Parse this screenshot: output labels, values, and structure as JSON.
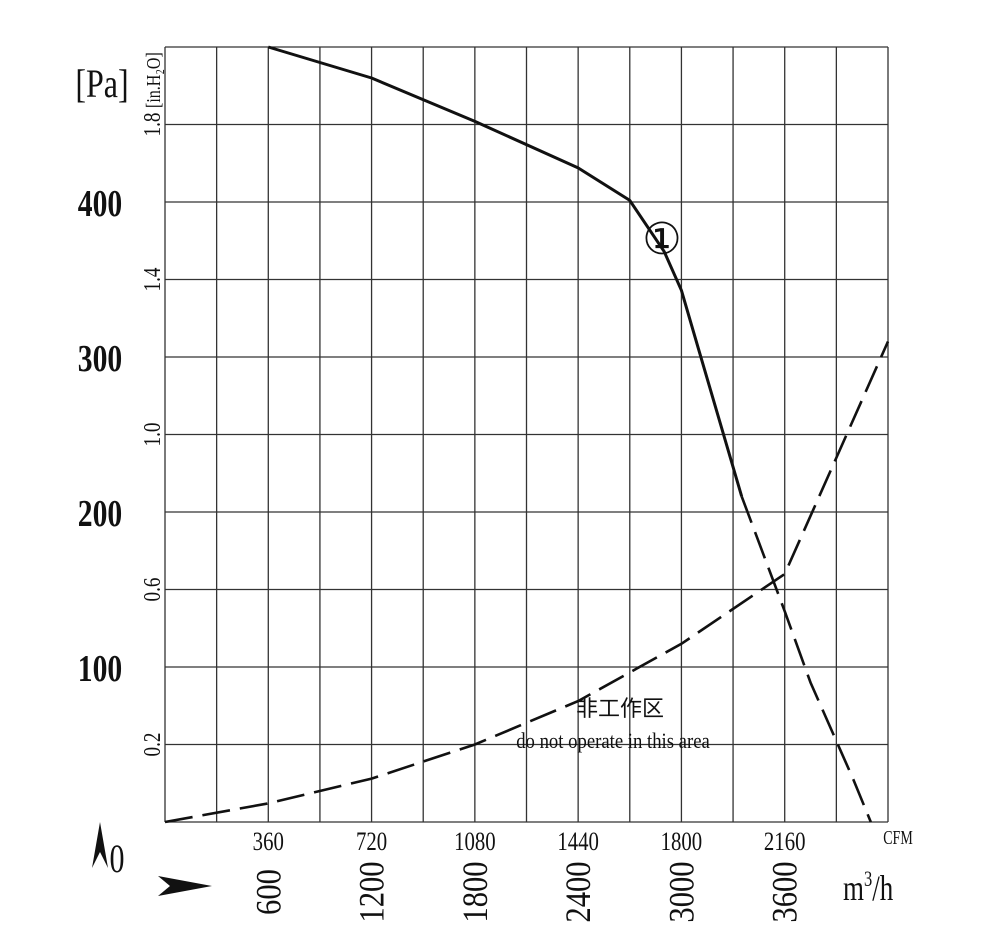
{
  "chart_data": {
    "type": "line",
    "y_unit_left": "[Pa]",
    "y_unit_right": "[in.H₂O]",
    "x_unit_cfm": "CFM",
    "x_unit_m3h": "m³/h",
    "x_unit_m3h_base": "m",
    "x_unit_m3h_exp": "3",
    "x_unit_m3h_tail": "/h",
    "origin_label": "0",
    "xlim_m3h": [
      0,
      4200
    ],
    "ylim_pa": [
      0,
      500
    ],
    "pa_ticks": [
      "100",
      "200",
      "300",
      "400"
    ],
    "pa_tick_values": [
      100,
      200,
      300,
      400
    ],
    "inh2o_ticks": [
      "0.2",
      "0.6",
      "1.0",
      "1.4",
      "1.8"
    ],
    "inh2o_tick_values": [
      0.2,
      0.6,
      1.0,
      1.4,
      1.8
    ],
    "cfm_ticks": [
      "360",
      "720",
      "1080",
      "1440",
      "1800",
      "2160"
    ],
    "cfm_tick_values": [
      360,
      720,
      1080,
      1440,
      1800,
      2160
    ],
    "m3h_ticks": [
      "600",
      "1200",
      "1800",
      "2400",
      "3000",
      "3600"
    ],
    "m3h_tick_values": [
      600,
      1200,
      1800,
      2400,
      3000,
      3600
    ],
    "grid": true,
    "series": [
      {
        "name": "①",
        "marker_label": "①",
        "style": "solid",
        "color": "#111111",
        "points": [
          [
            600,
            500
          ],
          [
            1200,
            480
          ],
          [
            1800,
            452
          ],
          [
            2400,
            422
          ],
          [
            2700,
            401
          ],
          [
            2900,
            368
          ],
          [
            3000,
            343
          ],
          [
            3100,
            305
          ],
          [
            3350,
            210
          ],
          [
            3600,
            136
          ],
          [
            3750,
            90
          ],
          [
            4000,
            27
          ],
          [
            4100,
            0
          ]
        ]
      },
      {
        "name": "",
        "style": "dashed",
        "color": "#111111",
        "points": [
          [
            0,
            0
          ],
          [
            600,
            12
          ],
          [
            1200,
            28
          ],
          [
            1800,
            50
          ],
          [
            2400,
            78
          ],
          [
            3000,
            115
          ],
          [
            3600,
            160
          ],
          [
            4200,
            310
          ]
        ]
      }
    ],
    "operating_region_split_m3h": 3350,
    "annotation_cn": "非工作区",
    "annotation_en": "do not operate in this area"
  }
}
